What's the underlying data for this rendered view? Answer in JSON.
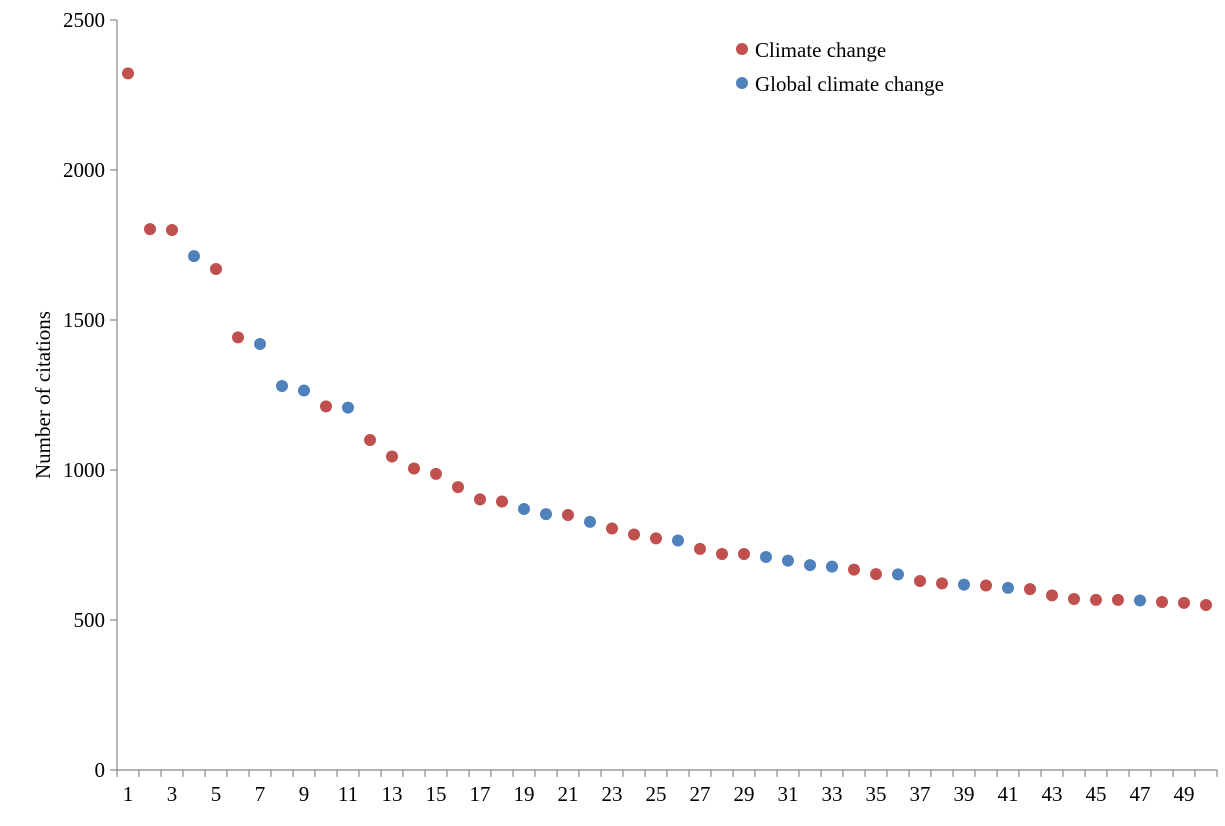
{
  "chart_data": {
    "type": "scatter",
    "title": "",
    "xlabel": "",
    "ylabel": "Number of citations",
    "xlim": [
      0.5,
      50.5
    ],
    "ylim": [
      0,
      2500
    ],
    "y_ticks": [
      0,
      500,
      1000,
      1500,
      2000,
      2500
    ],
    "x_tick_labels": [
      1,
      3,
      5,
      7,
      9,
      11,
      13,
      15,
      17,
      19,
      21,
      23,
      25,
      27,
      29,
      31,
      33,
      35,
      37,
      39,
      41,
      43,
      45,
      47,
      49
    ],
    "grid": false,
    "legend_position": "top-right",
    "series": [
      {
        "name": "Climate change",
        "color": "#c0504d",
        "points": [
          {
            "x": 1,
            "y": 2322
          },
          {
            "x": 2,
            "y": 1803
          },
          {
            "x": 3,
            "y": 1800
          },
          {
            "x": 5,
            "y": 1670
          },
          {
            "x": 6,
            "y": 1442
          },
          {
            "x": 10,
            "y": 1212
          },
          {
            "x": 12,
            "y": 1100
          },
          {
            "x": 13,
            "y": 1045
          },
          {
            "x": 14,
            "y": 1005
          },
          {
            "x": 15,
            "y": 987
          },
          {
            "x": 16,
            "y": 943
          },
          {
            "x": 17,
            "y": 902
          },
          {
            "x": 18,
            "y": 895
          },
          {
            "x": 21,
            "y": 850
          },
          {
            "x": 23,
            "y": 805
          },
          {
            "x": 24,
            "y": 785
          },
          {
            "x": 25,
            "y": 772
          },
          {
            "x": 27,
            "y": 737
          },
          {
            "x": 28,
            "y": 720
          },
          {
            "x": 29,
            "y": 720
          },
          {
            "x": 34,
            "y": 668
          },
          {
            "x": 35,
            "y": 653
          },
          {
            "x": 37,
            "y": 630
          },
          {
            "x": 38,
            "y": 622
          },
          {
            "x": 40,
            "y": 615
          },
          {
            "x": 42,
            "y": 603
          },
          {
            "x": 43,
            "y": 582
          },
          {
            "x": 44,
            "y": 570
          },
          {
            "x": 45,
            "y": 567
          },
          {
            "x": 46,
            "y": 567
          },
          {
            "x": 48,
            "y": 560
          },
          {
            "x": 49,
            "y": 557
          },
          {
            "x": 50,
            "y": 550
          }
        ]
      },
      {
        "name": "Global climate change",
        "color": "#4f81bd",
        "points": [
          {
            "x": 4,
            "y": 1713
          },
          {
            "x": 7,
            "y": 1420
          },
          {
            "x": 8,
            "y": 1280
          },
          {
            "x": 9,
            "y": 1265
          },
          {
            "x": 11,
            "y": 1208
          },
          {
            "x": 19,
            "y": 870
          },
          {
            "x": 20,
            "y": 853
          },
          {
            "x": 22,
            "y": 827
          },
          {
            "x": 26,
            "y": 765
          },
          {
            "x": 30,
            "y": 710
          },
          {
            "x": 31,
            "y": 698
          },
          {
            "x": 32,
            "y": 683
          },
          {
            "x": 33,
            "y": 678
          },
          {
            "x": 36,
            "y": 652
          },
          {
            "x": 39,
            "y": 618
          },
          {
            "x": 41,
            "y": 607
          },
          {
            "x": 47,
            "y": 565
          }
        ]
      }
    ]
  }
}
